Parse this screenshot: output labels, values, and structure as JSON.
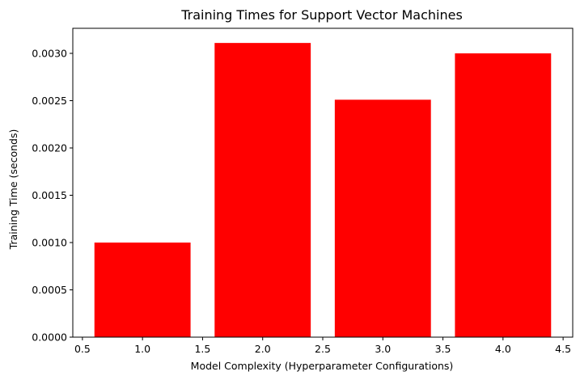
{
  "chart_data": {
    "type": "bar",
    "title": "Training Times for Support Vector Machines",
    "xlabel": "Model Complexity (Hyperparameter Configurations)",
    "ylabel": "Training Time (seconds)",
    "x": [
      1,
      2,
      3,
      4
    ],
    "values": [
      0.001,
      0.00311,
      0.00251,
      0.003
    ],
    "bar_width": 0.8,
    "xlim": [
      0.42,
      4.58
    ],
    "ylim": [
      0,
      0.003265
    ],
    "xticks": [
      "0.5",
      "1.0",
      "1.5",
      "2.0",
      "2.5",
      "3.0",
      "3.5",
      "4.0",
      "4.5"
    ],
    "xtick_values": [
      0.5,
      1.0,
      1.5,
      2.0,
      2.5,
      3.0,
      3.5,
      4.0,
      4.5
    ],
    "yticks": [
      "0.0000",
      "0.0005",
      "0.0010",
      "0.0015",
      "0.0020",
      "0.0025",
      "0.0030"
    ],
    "ytick_values": [
      0,
      0.0005,
      0.001,
      0.0015,
      0.002,
      0.0025,
      0.003
    ],
    "bar_color": "#ff0000",
    "grid": false,
    "legend": "none"
  }
}
